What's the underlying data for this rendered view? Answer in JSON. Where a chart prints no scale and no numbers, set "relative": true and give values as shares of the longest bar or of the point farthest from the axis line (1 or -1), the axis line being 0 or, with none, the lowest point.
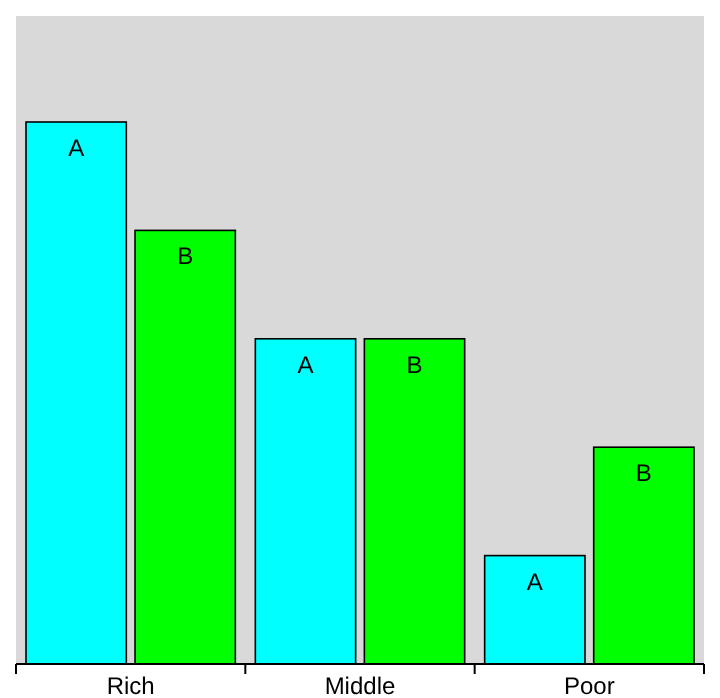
{
  "chart_data": {
    "type": "bar",
    "relative": true,
    "categories": [
      "Rich",
      "Middle",
      "Poor"
    ],
    "series": [
      {
        "name": "A",
        "color": "#00ffff",
        "values": [
          1,
          0.6,
          0.2
        ]
      },
      {
        "name": "B",
        "color": "#00ff00",
        "values": [
          0.8,
          0.6,
          0.4
        ]
      }
    ]
  }
}
